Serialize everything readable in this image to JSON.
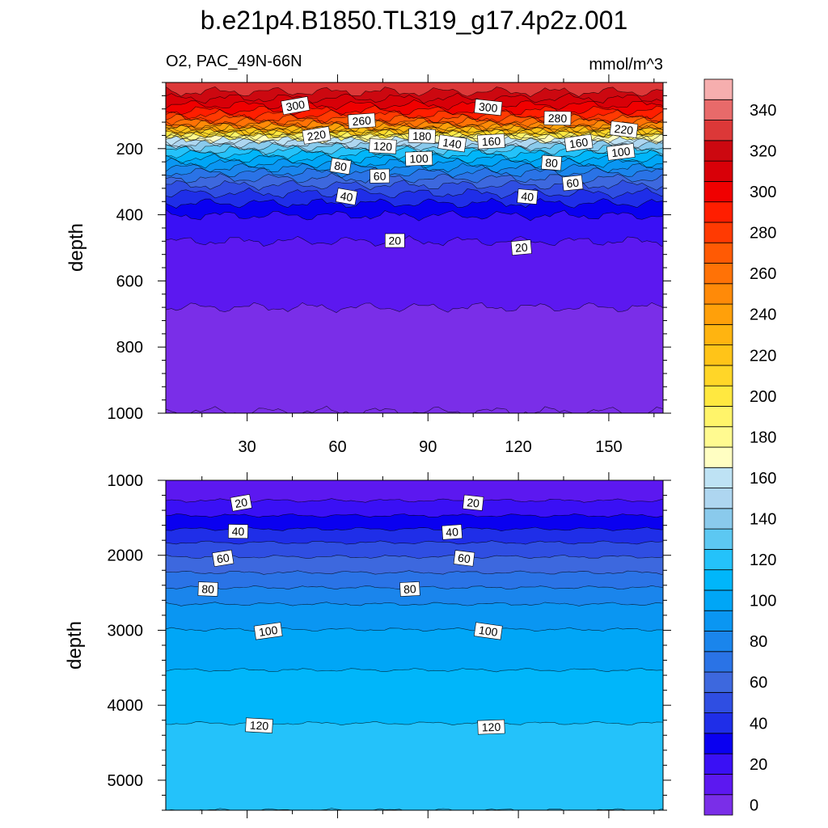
{
  "chart_data": {
    "type": "contour",
    "title": "b.e21p4.B1850.TL319_g17.4p2z.001",
    "variable_label": "O2, PAC_49N-66N",
    "units_label": "mmol/m^3",
    "xlabel": "",
    "ylabel": "depth",
    "x_ticks": [
      30,
      60,
      90,
      120,
      150
    ],
    "xlim": [
      3,
      168
    ],
    "colorbar": {
      "levels": [
        0,
        10,
        20,
        30,
        40,
        50,
        60,
        70,
        80,
        90,
        100,
        110,
        120,
        130,
        140,
        150,
        160,
        170,
        180,
        190,
        200,
        210,
        220,
        230,
        240,
        250,
        260,
        270,
        280,
        290,
        300,
        310,
        320,
        330,
        340,
        350
      ],
      "tick_labels": [
        "0",
        "20",
        "40",
        "60",
        "80",
        "100",
        "120",
        "140",
        "160",
        "180",
        "200",
        "220",
        "240",
        "260",
        "280",
        "300",
        "320",
        "340"
      ],
      "colors": [
        "#7a2ee8",
        "#5c18f0",
        "#3a10f5",
        "#0a00f0",
        "#1f2ee8",
        "#2f4ee2",
        "#3d68de",
        "#2a73e6",
        "#1a85ec",
        "#0a96f2",
        "#00a6f6",
        "#00b6fa",
        "#24c2fa",
        "#5cc8f2",
        "#8acaec",
        "#aed6f0",
        "#bee2f4",
        "#fffec2",
        "#fffa90",
        "#fff46a",
        "#ffe840",
        "#ffd628",
        "#ffc418",
        "#ffb410",
        "#ffa00a",
        "#ff8a08",
        "#ff7206",
        "#ff5a04",
        "#ff3a02",
        "#ff1e00",
        "#f00000",
        "#d80008",
        "#cc0810",
        "#dc3838",
        "#e86a6a",
        "#f6aeae"
      ]
    },
    "panels": [
      {
        "name": "upper",
        "ylim": [
          1000,
          0
        ],
        "y_ticks": [
          200,
          400,
          600,
          800,
          1000
        ],
        "bands": [
          {
            "level": 330,
            "depth": 28
          },
          {
            "level": 320,
            "depth": 48
          },
          {
            "level": 310,
            "depth": 68
          },
          {
            "level": 300,
            "depth": 85
          },
          {
            "level": 290,
            "depth": 98
          },
          {
            "level": 280,
            "depth": 110
          },
          {
            "level": 270,
            "depth": 118
          },
          {
            "level": 260,
            "depth": 126
          },
          {
            "level": 250,
            "depth": 132
          },
          {
            "level": 240,
            "depth": 138
          },
          {
            "level": 230,
            "depth": 143
          },
          {
            "level": 220,
            "depth": 148
          },
          {
            "level": 210,
            "depth": 152
          },
          {
            "level": 200,
            "depth": 156
          },
          {
            "level": 190,
            "depth": 160
          },
          {
            "level": 180,
            "depth": 165
          },
          {
            "level": 170,
            "depth": 171
          },
          {
            "level": 160,
            "depth": 178
          },
          {
            "level": 150,
            "depth": 186
          },
          {
            "level": 140,
            "depth": 195
          },
          {
            "level": 130,
            "depth": 205
          },
          {
            "level": 120,
            "depth": 217
          },
          {
            "level": 110,
            "depth": 230
          },
          {
            "level": 100,
            "depth": 244
          },
          {
            "level": 90,
            "depth": 258
          },
          {
            "level": 80,
            "depth": 272
          },
          {
            "level": 70,
            "depth": 290
          },
          {
            "level": 60,
            "depth": 310
          },
          {
            "level": 50,
            "depth": 335
          },
          {
            "level": 40,
            "depth": 365
          },
          {
            "level": 30,
            "depth": 402
          },
          {
            "level": 20,
            "depth": 480
          },
          {
            "level": 10,
            "depth": 680
          },
          {
            "level": 0,
            "depth": 995
          }
        ],
        "labels": [
          {
            "text": "300",
            "x": 46,
            "depth": 70
          },
          {
            "text": "300",
            "x": 110,
            "depth": 75
          },
          {
            "text": "280",
            "x": 133,
            "depth": 108
          },
          {
            "text": "260",
            "x": 68,
            "depth": 116
          },
          {
            "text": "220",
            "x": 53,
            "depth": 160
          },
          {
            "text": "220",
            "x": 155,
            "depth": 142
          },
          {
            "text": "180",
            "x": 88,
            "depth": 162
          },
          {
            "text": "160",
            "x": 111,
            "depth": 178
          },
          {
            "text": "160",
            "x": 140,
            "depth": 183
          },
          {
            "text": "140",
            "x": 98,
            "depth": 184
          },
          {
            "text": "120",
            "x": 75,
            "depth": 193
          },
          {
            "text": "100",
            "x": 87,
            "depth": 230
          },
          {
            "text": "100",
            "x": 154,
            "depth": 210
          },
          {
            "text": "80",
            "x": 61,
            "depth": 253
          },
          {
            "text": "80",
            "x": 131,
            "depth": 243
          },
          {
            "text": "60",
            "x": 74,
            "depth": 283
          },
          {
            "text": "60",
            "x": 138,
            "depth": 304
          },
          {
            "text": "40",
            "x": 63,
            "depth": 345
          },
          {
            "text": "40",
            "x": 123,
            "depth": 345
          },
          {
            "text": "20",
            "x": 79,
            "depth": 478
          },
          {
            "text": "20",
            "x": 121,
            "depth": 499
          }
        ]
      },
      {
        "name": "lower",
        "ylim": [
          5400,
          1000
        ],
        "y_ticks": [
          1000,
          2000,
          3000,
          4000,
          5000
        ],
        "bands": [
          {
            "level": 10,
            "depth": 1270
          },
          {
            "level": 20,
            "depth": 1470
          },
          {
            "level": 30,
            "depth": 1650
          },
          {
            "level": 40,
            "depth": 1830
          },
          {
            "level": 50,
            "depth": 2020
          },
          {
            "level": 60,
            "depth": 2230
          },
          {
            "level": 70,
            "depth": 2430
          },
          {
            "level": 80,
            "depth": 2650
          },
          {
            "level": 90,
            "depth": 2990
          },
          {
            "level": 100,
            "depth": 3530
          },
          {
            "level": 110,
            "depth": 4240
          },
          {
            "level": 120,
            "depth": 5400
          }
        ],
        "labels": [
          {
            "text": "20",
            "x": 28,
            "depth": 1300
          },
          {
            "text": "20",
            "x": 105,
            "depth": 1300
          },
          {
            "text": "40",
            "x": 27,
            "depth": 1680
          },
          {
            "text": "40",
            "x": 98,
            "depth": 1690
          },
          {
            "text": "60",
            "x": 22,
            "depth": 2040
          },
          {
            "text": "60",
            "x": 102,
            "depth": 2040
          },
          {
            "text": "80",
            "x": 17,
            "depth": 2450
          },
          {
            "text": "80",
            "x": 84,
            "depth": 2450
          },
          {
            "text": "100",
            "x": 37,
            "depth": 3010
          },
          {
            "text": "100",
            "x": 110,
            "depth": 3010
          },
          {
            "text": "120",
            "x": 34,
            "depth": 4270
          },
          {
            "text": "120",
            "x": 111,
            "depth": 4290
          }
        ]
      }
    ]
  }
}
